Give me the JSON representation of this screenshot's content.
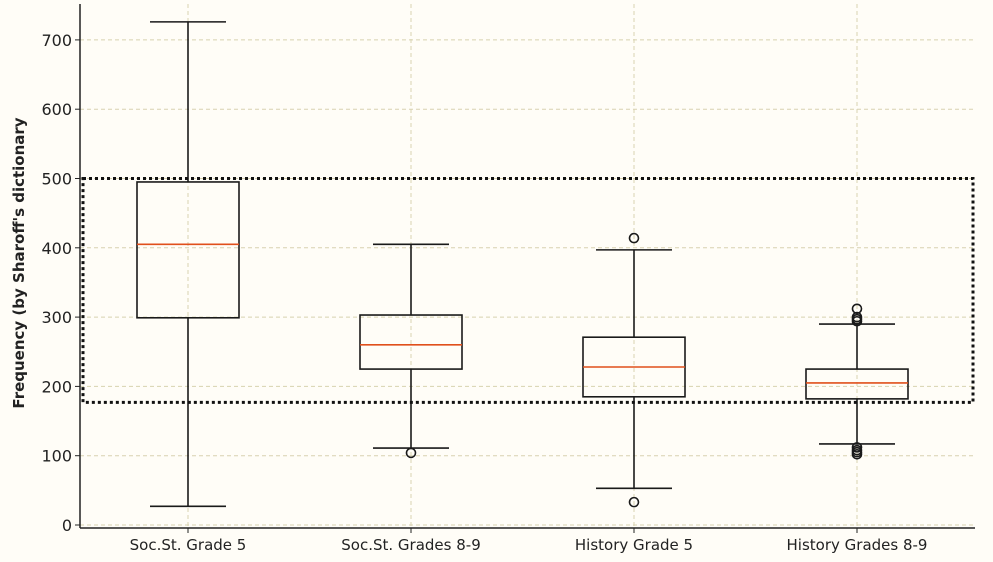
{
  "chart_data": {
    "type": "boxplot",
    "title": "",
    "xlabel": "",
    "ylabel": "Frequency (by Sharoff's dictionary",
    "ylim": [
      -5,
      735
    ],
    "yticks": [
      0,
      100,
      200,
      300,
      400,
      500,
      600,
      700
    ],
    "grid": true,
    "categories": [
      "Soc.St. Grade 5",
      "Soc.St. Grades 8-9",
      "History Grade 5",
      "History Grades 8-9"
    ],
    "boxes": [
      {
        "whislo": 27,
        "q1": 299,
        "med": 405,
        "q3": 495,
        "whishi": 726,
        "fliers": []
      },
      {
        "whislo": 111,
        "q1": 225,
        "med": 260,
        "q3": 303,
        "whishi": 405,
        "fliers": [
          104
        ]
      },
      {
        "whislo": 53,
        "q1": 185,
        "med": 228,
        "q3": 271,
        "whishi": 397,
        "fliers": [
          414,
          33
        ]
      },
      {
        "whislo": 117,
        "q1": 182,
        "med": 205,
        "q3": 225,
        "whishi": 290,
        "fliers": [
          312,
          300,
          297,
          294,
          112,
          108,
          105,
          102
        ]
      }
    ],
    "highlight_region": {
      "ymin": 177,
      "ymax": 500,
      "style": "dotted"
    },
    "colors": {
      "box": "#1a1a1a",
      "median": "#e0501c",
      "grid": "#d8d2b0",
      "background": "#fffdf7"
    }
  }
}
